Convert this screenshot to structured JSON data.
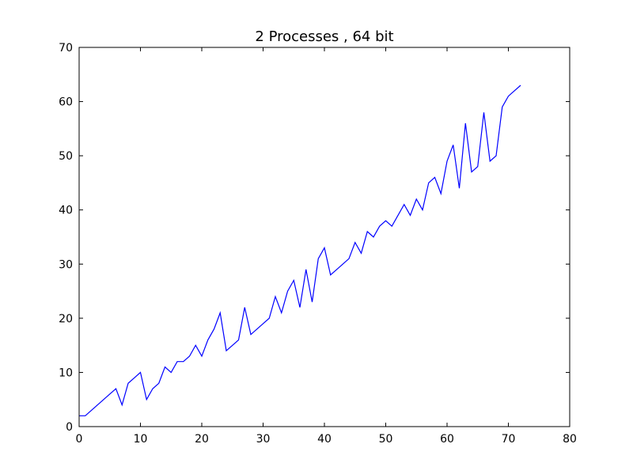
{
  "chart_data": {
    "type": "line",
    "title": "2 Processes , 64 bit",
    "xlabel": "",
    "ylabel": "",
    "xlim": [
      0,
      80
    ],
    "ylim": [
      0,
      70
    ],
    "xticks": [
      "0",
      "10",
      "20",
      "30",
      "40",
      "50",
      "60",
      "70",
      "80"
    ],
    "yticks": [
      "0",
      "10",
      "20",
      "30",
      "40",
      "50",
      "60",
      "70"
    ],
    "grid": false,
    "legend": "none",
    "line_color": "#0000ff",
    "series": [
      {
        "x": [
          0,
          1,
          2,
          3,
          4,
          5,
          6,
          7,
          8,
          9,
          10,
          11,
          12,
          13,
          14,
          15,
          16,
          17,
          18,
          19,
          20,
          21,
          22,
          23,
          24,
          25,
          26,
          27,
          28,
          29,
          30,
          31,
          32,
          33,
          34,
          35,
          36,
          37,
          38,
          39,
          40,
          41,
          42,
          43,
          44,
          45,
          46,
          47,
          48,
          49,
          50,
          51,
          52,
          53,
          54,
          55,
          56,
          57,
          58,
          59,
          60,
          61,
          62,
          63,
          64,
          65,
          66,
          67,
          68,
          69,
          70,
          71,
          72
        ],
        "values": [
          2,
          2,
          3,
          4,
          5,
          6,
          7,
          4,
          8,
          9,
          10,
          5,
          7,
          8,
          11,
          10,
          12,
          12,
          13,
          15,
          13,
          16,
          18,
          21,
          14,
          15,
          16,
          22,
          17,
          18,
          19,
          20,
          24,
          21,
          25,
          27,
          22,
          29,
          23,
          31,
          33,
          28,
          29,
          30,
          31,
          34,
          32,
          36,
          35,
          37,
          38,
          37,
          39,
          41,
          39,
          42,
          40,
          45,
          46,
          43,
          49,
          52,
          44,
          56,
          47,
          48,
          58,
          49,
          50,
          59,
          61,
          62,
          63
        ]
      }
    ]
  }
}
